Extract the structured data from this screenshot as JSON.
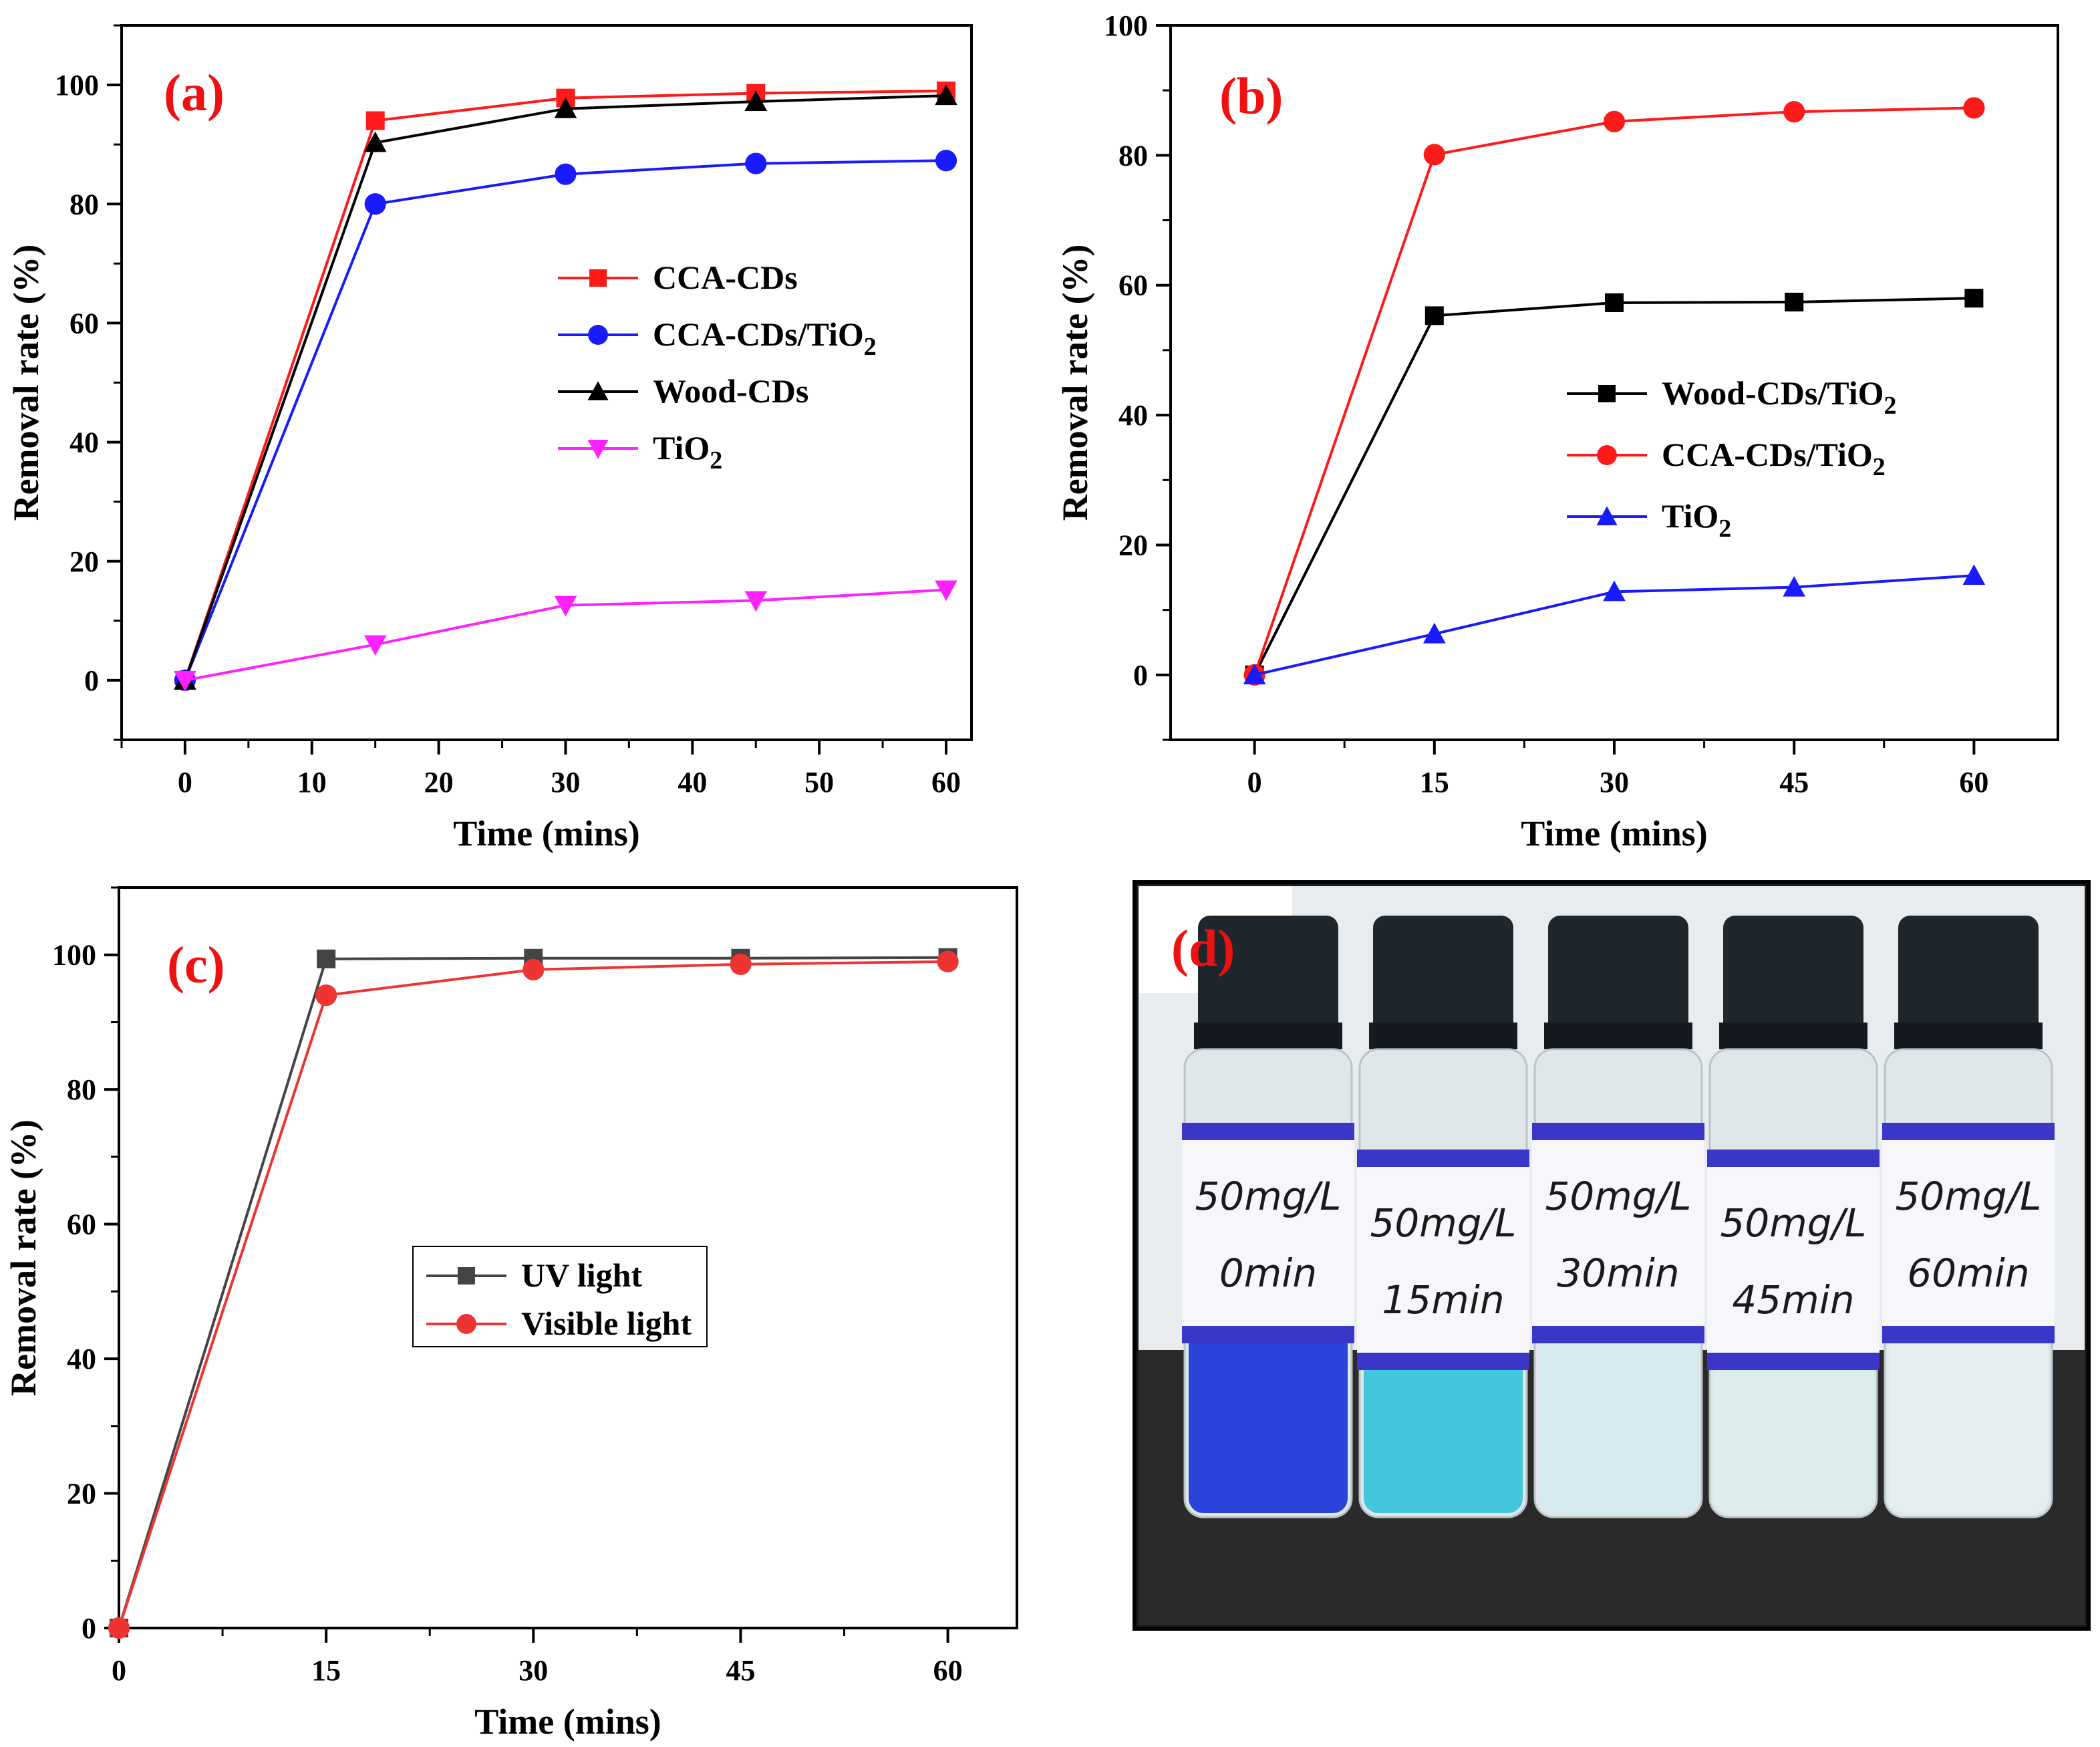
{
  "chart_data": [
    {
      "type": "line",
      "panel_label": "(a)",
      "xlabel": "Time (mins)",
      "ylabel": "Removal rate (%)",
      "xlim": [
        -5,
        62
      ],
      "ylim": [
        -10,
        110
      ],
      "xticks": [
        0,
        10,
        20,
        30,
        40,
        50,
        60
      ],
      "yticks": [
        0,
        20,
        40,
        60,
        80,
        100
      ],
      "legend_position": "center-right",
      "series": [
        {
          "name": "CCA-CDs",
          "name_sub": "",
          "color": "#ff1a1a",
          "marker": "square",
          "x": [
            0,
            15,
            30,
            45,
            60
          ],
          "y": [
            0,
            94,
            97.8,
            98.6,
            99
          ]
        },
        {
          "name": "CCA-CDs/TiO",
          "name_sub": "2",
          "color": "#1a1aff",
          "marker": "circle",
          "x": [
            0,
            15,
            30,
            45,
            60
          ],
          "y": [
            0,
            80,
            85,
            86.8,
            87.3
          ]
        },
        {
          "name": "Wood-CDs",
          "name_sub": "",
          "color": "#000000",
          "marker": "triangle-up",
          "x": [
            0,
            15,
            30,
            45,
            60
          ],
          "y": [
            0,
            90.3,
            96,
            97.2,
            98.2
          ]
        },
        {
          "name": "TiO",
          "name_sub": "2",
          "color": "#ff22ff",
          "marker": "triangle-down",
          "x": [
            0,
            15,
            30,
            45,
            60
          ],
          "y": [
            0,
            6,
            12.6,
            13.4,
            15.2
          ]
        }
      ]
    },
    {
      "type": "line",
      "panel_label": "(b)",
      "xlabel": "Time (mins)",
      "ylabel": "Removal rate (%)",
      "xlim": [
        -7,
        67
      ],
      "ylim": [
        -10,
        100
      ],
      "xticks": [
        0,
        15,
        30,
        45,
        60
      ],
      "yticks": [
        0,
        20,
        40,
        60,
        80,
        100
      ],
      "legend_position": "center-right",
      "series": [
        {
          "name": "Wood-CDs/TiO",
          "name_sub": "2",
          "color": "#000000",
          "marker": "square",
          "x": [
            0,
            15,
            30,
            45,
            60
          ],
          "y": [
            0,
            55.3,
            57.3,
            57.4,
            58
          ]
        },
        {
          "name": "CCA-CDs/TiO",
          "name_sub": "2",
          "color": "#ff1a1a",
          "marker": "circle",
          "x": [
            0,
            15,
            30,
            45,
            60
          ],
          "y": [
            0,
            80.1,
            85.2,
            86.7,
            87.3
          ]
        },
        {
          "name": "TiO",
          "name_sub": "2",
          "color": "#1a1aff",
          "marker": "triangle-up",
          "x": [
            0,
            15,
            30,
            45,
            60
          ],
          "y": [
            0,
            6.3,
            12.8,
            13.5,
            15.3
          ]
        }
      ]
    },
    {
      "type": "line",
      "panel_label": "(c)",
      "xlabel": "Time (mins)",
      "ylabel": "Removal rate (%)",
      "xlim": [
        0,
        65
      ],
      "ylim": [
        0,
        110
      ],
      "xticks": [
        0,
        15,
        30,
        45,
        60
      ],
      "yticks": [
        0,
        20,
        40,
        60,
        80,
        100
      ],
      "legend_position": "center",
      "series": [
        {
          "name": "UV light",
          "name_sub": "",
          "color": "#444444",
          "marker": "square",
          "x": [
            0,
            15,
            30,
            45,
            60
          ],
          "y": [
            0,
            99.4,
            99.5,
            99.5,
            99.6
          ]
        },
        {
          "name": "Visible light",
          "name_sub": "",
          "color": "#ee3333",
          "marker": "circle",
          "x": [
            0,
            15,
            30,
            45,
            60
          ],
          "y": [
            0,
            94,
            97.8,
            98.6,
            99
          ]
        }
      ]
    }
  ],
  "photo": {
    "panel_label": "(d)",
    "vials": [
      {
        "line1": "50mg/L",
        "line2": "0min",
        "liquid": "#1a35d8"
      },
      {
        "line1": "50mg/L",
        "line2": "15min",
        "liquid": "#36c4dc"
      },
      {
        "line1": "50mg/L",
        "line2": "30min",
        "liquid": "#d4ecef"
      },
      {
        "line1": "50mg/L",
        "line2": "45min",
        "liquid": "#dbeeee"
      },
      {
        "line1": "50mg/L",
        "line2": "60min",
        "liquid": "#e5efef"
      }
    ]
  }
}
